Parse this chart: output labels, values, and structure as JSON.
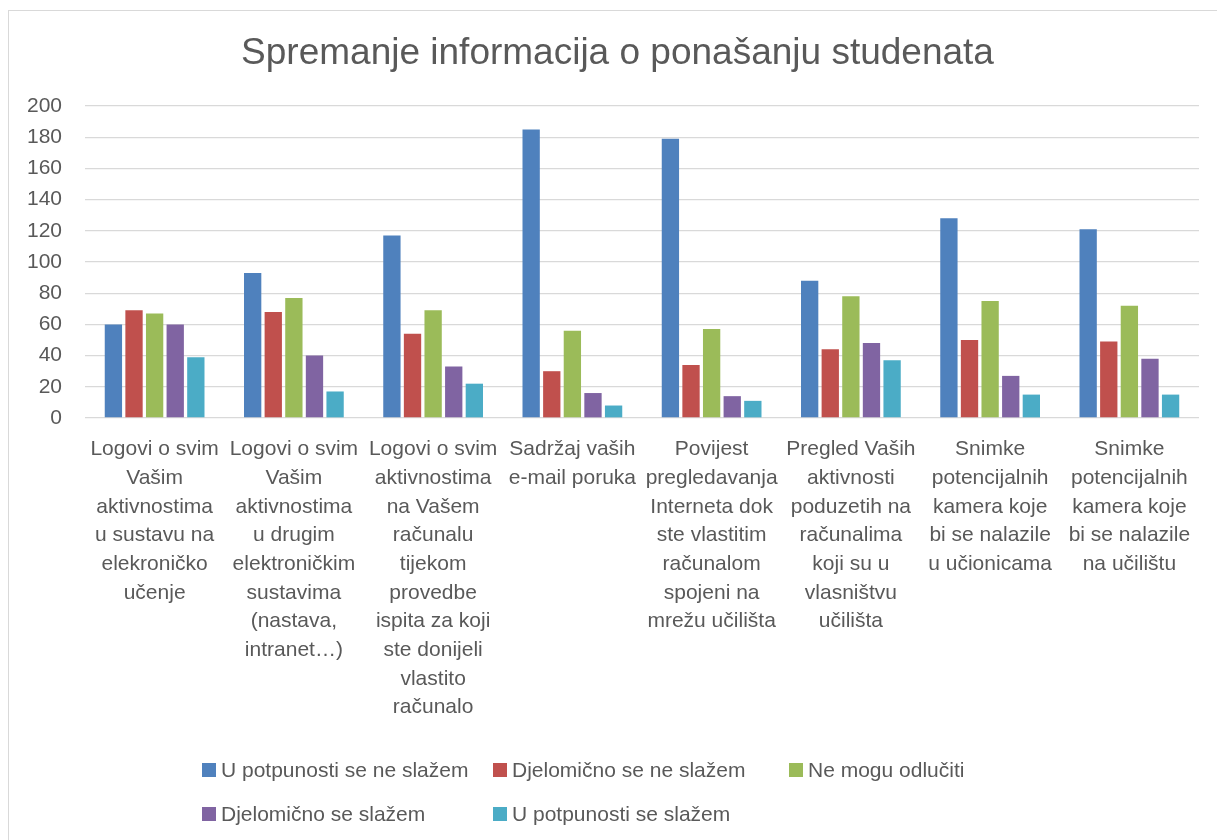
{
  "chart_data": {
    "type": "bar",
    "title": "Spremanje informacija o ponašanju studenata",
    "categories": [
      "Logovi o svim Vašim aktivnostima u sustavu na elekroničko učenje",
      "Logovi o svim Vašim aktivnostima u drugim elektroničkim sustavima (nastava, intranet…)",
      "Logovi o svim aktivnostima na Vašem računalu tijekom provedbe ispita za koji ste donijeli vlastito računalo",
      "Sadržaj vaših e-mail poruka",
      "Povijest pregledavanja Interneta dok ste vlastitim računalom spojeni na mrežu učilišta",
      "Pregled Vaših aktivnosti poduzetih na računalima koji su u vlasništvu učilišta",
      "Snimke potencijalnih kamera koje bi se nalazile u učionicama",
      "Snimke potencijalnih kamera koje bi se nalazile na učilištu"
    ],
    "series": [
      {
        "name": "U potpunosti se ne slažem",
        "color": "#4f81bd",
        "values": [
          60,
          93,
          117,
          185,
          179,
          88,
          128,
          121
        ]
      },
      {
        "name": "Djelomično se ne slažem",
        "color": "#c0504d",
        "values": [
          69,
          68,
          54,
          30,
          34,
          44,
          50,
          49
        ]
      },
      {
        "name": "Ne mogu odlučiti",
        "color": "#9bbb59",
        "values": [
          67,
          77,
          69,
          56,
          57,
          78,
          75,
          72
        ]
      },
      {
        "name": "Djelomično se slažem",
        "color": "#8064a2",
        "values": [
          60,
          40,
          33,
          16,
          14,
          48,
          27,
          38
        ]
      },
      {
        "name": "U potpunosti se slažem",
        "color": "#4bacc6",
        "values": [
          39,
          17,
          22,
          8,
          11,
          37,
          15,
          15
        ]
      }
    ],
    "ylim": [
      0,
      200
    ],
    "yticks": [
      0,
      20,
      40,
      60,
      80,
      100,
      120,
      140,
      160,
      180,
      200
    ],
    "grid": "y",
    "legend": "bottom"
  }
}
